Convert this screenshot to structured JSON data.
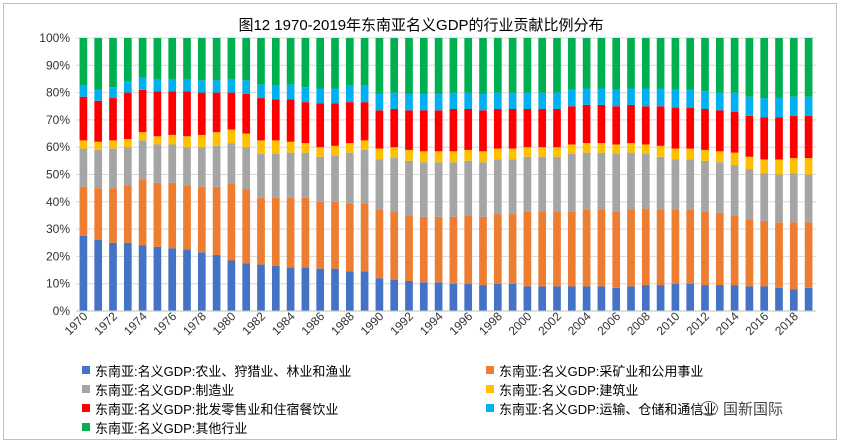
{
  "chart_data": {
    "type": "bar",
    "stacked": true,
    "title": "图12 1970-2019年东南亚名义GDP的行业贡献比例分布",
    "xlabel": "",
    "ylabel": "",
    "ylim": [
      0,
      100
    ],
    "y_ticks": [
      "0%",
      "10%",
      "20%",
      "30%",
      "40%",
      "50%",
      "60%",
      "70%",
      "80%",
      "90%",
      "100%"
    ],
    "x_tick_labels": [
      "1970",
      "1972",
      "1974",
      "1976",
      "1978",
      "1980",
      "1982",
      "1984",
      "1986",
      "1988",
      "1990",
      "1992",
      "1994",
      "1996",
      "1998",
      "2000",
      "2002",
      "2004",
      "2006",
      "2008",
      "2010",
      "2012",
      "2014",
      "2016",
      "2018"
    ],
    "grid": true,
    "legend_position": "bottom",
    "categories": [
      "1970",
      "1971",
      "1972",
      "1973",
      "1974",
      "1975",
      "1976",
      "1977",
      "1978",
      "1979",
      "1980",
      "1981",
      "1982",
      "1983",
      "1984",
      "1985",
      "1986",
      "1987",
      "1988",
      "1989",
      "1990",
      "1991",
      "1992",
      "1993",
      "1994",
      "1995",
      "1996",
      "1997",
      "1998",
      "1999",
      "2000",
      "2001",
      "2002",
      "2003",
      "2004",
      "2005",
      "2006",
      "2007",
      "2008",
      "2009",
      "2010",
      "2011",
      "2012",
      "2013",
      "2014",
      "2015",
      "2016",
      "2017",
      "2018",
      "2019"
    ],
    "series": [
      {
        "name": "东南亚:名义GDP:农业、狩猎业、林业和渔业",
        "color": "#4472c4",
        "values": [
          27.5,
          26,
          25,
          25,
          24,
          23.5,
          23,
          22.5,
          21.5,
          20.5,
          18.5,
          17.5,
          17,
          16.5,
          16,
          16,
          15.5,
          15.5,
          14.5,
          14.5,
          12,
          11.5,
          11,
          10.5,
          10.5,
          10,
          10,
          9.5,
          10,
          10,
          9,
          9,
          9,
          9,
          9,
          9,
          8.5,
          9,
          9.5,
          9.5,
          10,
          10,
          9.5,
          9.5,
          9.5,
          9,
          9,
          8.5,
          8,
          8.5
        ]
      },
      {
        "name": "东南亚:名义GDP:采矿业和公用事业",
        "color": "#ed7d31",
        "values": [
          18,
          19,
          20,
          21,
          24,
          23.5,
          24,
          23.5,
          24,
          25,
          28,
          27,
          24.5,
          25,
          25.5,
          25.5,
          24.5,
          24.5,
          25,
          25,
          25,
          25,
          24,
          24,
          24,
          24.5,
          25,
          25,
          25.5,
          25.5,
          27.5,
          27.5,
          27.5,
          27.5,
          28,
          28,
          28,
          28,
          28,
          27.5,
          27,
          27,
          27,
          26.5,
          25.5,
          24.5,
          24,
          24,
          24.5,
          24
        ]
      },
      {
        "name": "东南亚:名义GDP:制造业",
        "color": "#a5a5a5",
        "values": [
          14,
          14,
          14.5,
          14,
          14.5,
          14,
          14,
          14,
          14.5,
          15,
          15,
          15.5,
          16,
          16,
          16.5,
          16.5,
          16.5,
          17,
          18.5,
          19.5,
          18.5,
          19.5,
          20,
          20,
          20,
          20,
          20,
          20,
          20,
          20,
          20,
          20,
          20,
          21,
          21,
          21,
          21,
          21,
          20,
          19.5,
          18.5,
          18.5,
          18.5,
          18.5,
          18.5,
          18.5,
          17.5,
          17.5,
          18,
          17.5
        ]
      },
      {
        "name": "东南亚:名义GDP:建筑业",
        "color": "#ffc000",
        "values": [
          3,
          3,
          3,
          3,
          3,
          3,
          3.5,
          4,
          4.5,
          5,
          5,
          5,
          5,
          5,
          4,
          3.5,
          3.5,
          3.5,
          3.5,
          3.5,
          4,
          4,
          4,
          4,
          4,
          4,
          4,
          4,
          4,
          4,
          3.5,
          3.5,
          3.5,
          3.5,
          3.5,
          3.5,
          3.5,
          3.5,
          3.5,
          4,
          4,
          4,
          4,
          4,
          4.5,
          4.5,
          5,
          5.5,
          5.5,
          6
        ]
      },
      {
        "name": "东南亚:名义GDP:批发零售业和住宿餐饮业",
        "color": "#ff0000",
        "values": [
          16,
          15,
          15.5,
          17,
          15.5,
          16.5,
          16,
          16.5,
          15.5,
          14.5,
          13.5,
          14.5,
          15.5,
          15,
          15.5,
          15,
          16,
          15.5,
          15,
          14,
          14,
          14,
          14.5,
          15,
          15,
          15.5,
          15,
          15,
          14.5,
          14.5,
          14,
          14,
          14,
          14,
          14,
          14,
          14,
          14,
          14,
          14.5,
          15,
          15,
          15,
          15,
          15,
          15,
          15.5,
          15.5,
          15.5,
          15.5
        ]
      },
      {
        "name": "东南亚:名义GDP:运输、仓储和通信业",
        "color": "#00b0f0",
        "values": [
          4,
          4,
          4,
          4,
          4.5,
          4.5,
          4.5,
          4.5,
          4.5,
          4.5,
          5,
          5,
          5,
          5,
          5.5,
          5.5,
          5.5,
          5.5,
          6,
          6,
          6,
          6,
          6,
          6,
          6,
          6,
          6,
          6,
          6,
          6,
          6,
          6,
          6,
          6,
          6,
          6,
          6,
          6,
          6.5,
          6.5,
          6.5,
          6.5,
          6.5,
          6.5,
          7,
          7,
          7,
          7,
          7,
          7
        ]
      },
      {
        "name": "东南亚:名义GDP:其他行业",
        "color": "#00b050",
        "values": [
          17.5,
          19,
          18,
          16,
          14.5,
          15,
          15,
          15,
          15.5,
          15.5,
          15,
          15.5,
          17,
          17.5,
          17,
          18,
          18.5,
          18.5,
          17.5,
          17.5,
          20.5,
          20,
          20.5,
          20.5,
          20.5,
          20,
          20,
          20.5,
          20,
          20,
          20,
          20,
          20,
          19,
          18.5,
          18.5,
          19,
          18.5,
          18.5,
          18.5,
          19,
          19,
          19.5,
          20,
          20,
          21.5,
          22,
          22,
          21.5,
          21.5
        ]
      }
    ]
  },
  "watermark": {
    "text": "国新国际",
    "icon": "wechat-icon"
  }
}
